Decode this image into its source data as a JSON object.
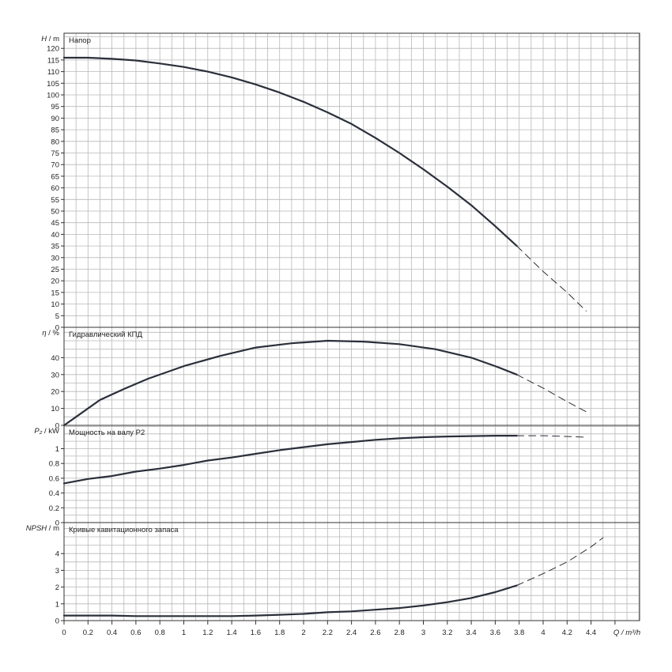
{
  "chart_data": {
    "type": "line",
    "x_axis": {
      "label": "Q / m³/h",
      "range": [
        0,
        4.8
      ],
      "ticks": [
        "0",
        "0.2",
        "0.4",
        "0.6",
        "0.8",
        "1",
        "1.2",
        "1.4",
        "1.6",
        "1.8",
        "2",
        "2.2",
        "2.4",
        "2.6",
        "2.8",
        "3",
        "3.2",
        "3.4",
        "3.6",
        "3.8",
        "4",
        "4.2",
        "4.4",
        "Q / m³/h"
      ]
    },
    "panels": [
      {
        "id": "head",
        "title": "Напор",
        "ylabel_sym": "H",
        "ylabel_unit": " / m",
        "ylim": [
          0,
          125
        ],
        "ytick_labels": [
          "0",
          "5",
          "10",
          "15",
          "20",
          "25",
          "30",
          "35",
          "40",
          "45",
          "50",
          "55",
          "60",
          "65",
          "70",
          "75",
          "80",
          "85",
          "90",
          "95",
          "100",
          "105",
          "110",
          "115",
          "120"
        ],
        "series_solid": {
          "x": [
            0,
            0.2,
            0.4,
            0.6,
            0.8,
            1.0,
            1.2,
            1.4,
            1.6,
            1.8,
            2.0,
            2.2,
            2.4,
            2.6,
            2.8,
            3.0,
            3.2,
            3.4,
            3.6,
            3.78
          ],
          "y": [
            116,
            116,
            115.5,
            114.8,
            113.5,
            112,
            110,
            107.5,
            104.5,
            101,
            97,
            92.5,
            87.5,
            81.5,
            75,
            68,
            60.5,
            52.5,
            43.5,
            35
          ]
        },
        "series_dashed": {
          "x": [
            3.78,
            4.0,
            4.2,
            4.36
          ],
          "y": [
            35,
            24,
            15,
            7
          ]
        }
      },
      {
        "id": "efficiency",
        "title": "Гидравлический КПД",
        "ylabel_sym": "η",
        "ylabel_unit": " / %",
        "ylim": [
          0,
          58
        ],
        "ytick_labels": [
          "0",
          "10",
          "20",
          "30",
          "40"
        ],
        "series_solid": {
          "x": [
            0,
            0.1,
            0.3,
            0.5,
            0.7,
            1.0,
            1.3,
            1.6,
            1.9,
            2.2,
            2.5,
            2.8,
            3.1,
            3.4,
            3.6,
            3.78
          ],
          "y": [
            0,
            5,
            15,
            21.5,
            27.5,
            35,
            41,
            46,
            48.5,
            50,
            49.5,
            48,
            45,
            40,
            35,
            30
          ]
        },
        "series_dashed": {
          "x": [
            3.78,
            4.0,
            4.2,
            4.36
          ],
          "y": [
            30,
            22,
            14,
            8
          ]
        }
      },
      {
        "id": "power",
        "title": "Мощность на валу P2",
        "ylabel_sym": "P₂",
        "ylabel_unit": " / kW",
        "ylim": [
          0,
          1.3
        ],
        "ytick_labels": [
          "0",
          "0.2",
          "0.4",
          "0.6",
          "0.8",
          "1"
        ],
        "series_solid": {
          "x": [
            0,
            0.2,
            0.4,
            0.6,
            0.8,
            1.0,
            1.2,
            1.4,
            1.6,
            1.8,
            2.0,
            2.2,
            2.4,
            2.6,
            2.8,
            3.0,
            3.2,
            3.4,
            3.6,
            3.78
          ],
          "y": [
            0.53,
            0.59,
            0.63,
            0.69,
            0.73,
            0.78,
            0.84,
            0.88,
            0.93,
            0.98,
            1.02,
            1.06,
            1.09,
            1.12,
            1.14,
            1.155,
            1.165,
            1.17,
            1.175,
            1.175
          ]
        },
        "series_dashed": {
          "x": [
            3.78,
            4.0,
            4.2,
            4.36
          ],
          "y": [
            1.175,
            1.175,
            1.165,
            1.155
          ]
        }
      },
      {
        "id": "npsh",
        "title": "Кривые кавитационного запаса",
        "ylabel_sym": "NPSH",
        "ylabel_unit": " / m",
        "ylim": [
          0,
          5.3
        ],
        "ytick_labels": [
          "0",
          "1",
          "2",
          "3",
          "4"
        ],
        "series_solid": {
          "x": [
            0,
            0.2,
            0.4,
            0.6,
            0.8,
            1.0,
            1.2,
            1.4,
            1.6,
            1.8,
            2.0,
            2.2,
            2.4,
            2.6,
            2.8,
            3.0,
            3.2,
            3.4,
            3.6,
            3.78
          ],
          "y": [
            0.3,
            0.3,
            0.3,
            0.27,
            0.27,
            0.27,
            0.27,
            0.27,
            0.3,
            0.35,
            0.4,
            0.5,
            0.55,
            0.65,
            0.75,
            0.9,
            1.1,
            1.35,
            1.7,
            2.1
          ]
        },
        "series_dashed": {
          "x": [
            3.78,
            4.0,
            4.2,
            4.4,
            4.5
          ],
          "y": [
            2.1,
            2.8,
            3.5,
            4.4,
            4.95
          ]
        }
      }
    ],
    "grid": true
  }
}
